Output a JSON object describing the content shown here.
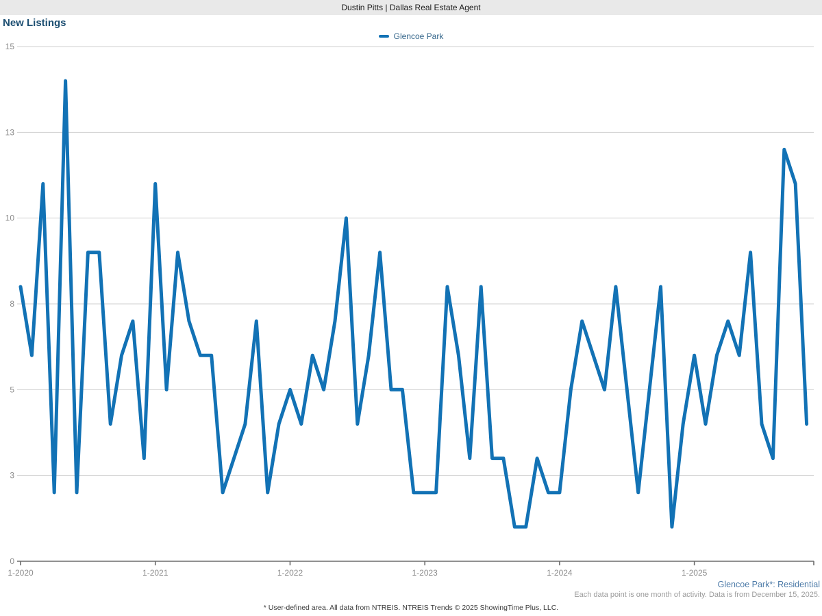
{
  "header": {
    "title": "Dustin Pitts | Dallas Real Estate Agent"
  },
  "page_title": "New Listings",
  "legend": {
    "label": "Glencoe Park",
    "color": "#1272b5"
  },
  "annotations": {
    "series_note": "Glencoe Park*: Residential",
    "data_note": "Each data point is one month of activity. Data is from December 15, 2025.",
    "footer": "* User-defined area. All data from NTREIS. NTREIS Trends © 2025 ShowingTime Plus, LLC."
  },
  "colors": {
    "line": "#1272b5",
    "grid": "#cfcfcf",
    "axis": "#6b6b6b",
    "tick_text": "#8c8c8c",
    "title_text": "#1d4f72",
    "header_bg": "#e9e9e9"
  },
  "chart_data": {
    "type": "line",
    "title": "New Listings",
    "x_unit": "month",
    "x_start": "1-2020",
    "x_end": "11-2025",
    "grid": "horizontal",
    "legend_position": "top-center",
    "ylim": [
      0,
      15
    ],
    "y_ticks": [
      {
        "value": 0,
        "label": "0"
      },
      {
        "value": 2.5,
        "label": "3"
      },
      {
        "value": 5,
        "label": "5"
      },
      {
        "value": 7.5,
        "label": "8"
      },
      {
        "value": 10,
        "label": "10"
      },
      {
        "value": 12.5,
        "label": "13"
      },
      {
        "value": 15,
        "label": "15"
      }
    ],
    "x_tick_labels": [
      "1-2020",
      "1-2021",
      "1-2022",
      "1-2023",
      "1-2024",
      "1-2025"
    ],
    "x_tick_indices": [
      0,
      12,
      24,
      36,
      48,
      60
    ],
    "series": [
      {
        "name": "Glencoe Park",
        "color": "#1272b5",
        "values": [
          8,
          6,
          11,
          2,
          14,
          2,
          9,
          9,
          4,
          6,
          7,
          3,
          11,
          5,
          9,
          7,
          6,
          6,
          2,
          3,
          4,
          7,
          2,
          4,
          5,
          4,
          6,
          5,
          7,
          10,
          4,
          6,
          9,
          5,
          5,
          2,
          2,
          2,
          8,
          6,
          3,
          8,
          3,
          3,
          1,
          1,
          3,
          2,
          2,
          5,
          7,
          6,
          5,
          8,
          5,
          2,
          5,
          8,
          1,
          4,
          6,
          4,
          6,
          7,
          6,
          9,
          4,
          3,
          12,
          11,
          4
        ]
      }
    ]
  }
}
